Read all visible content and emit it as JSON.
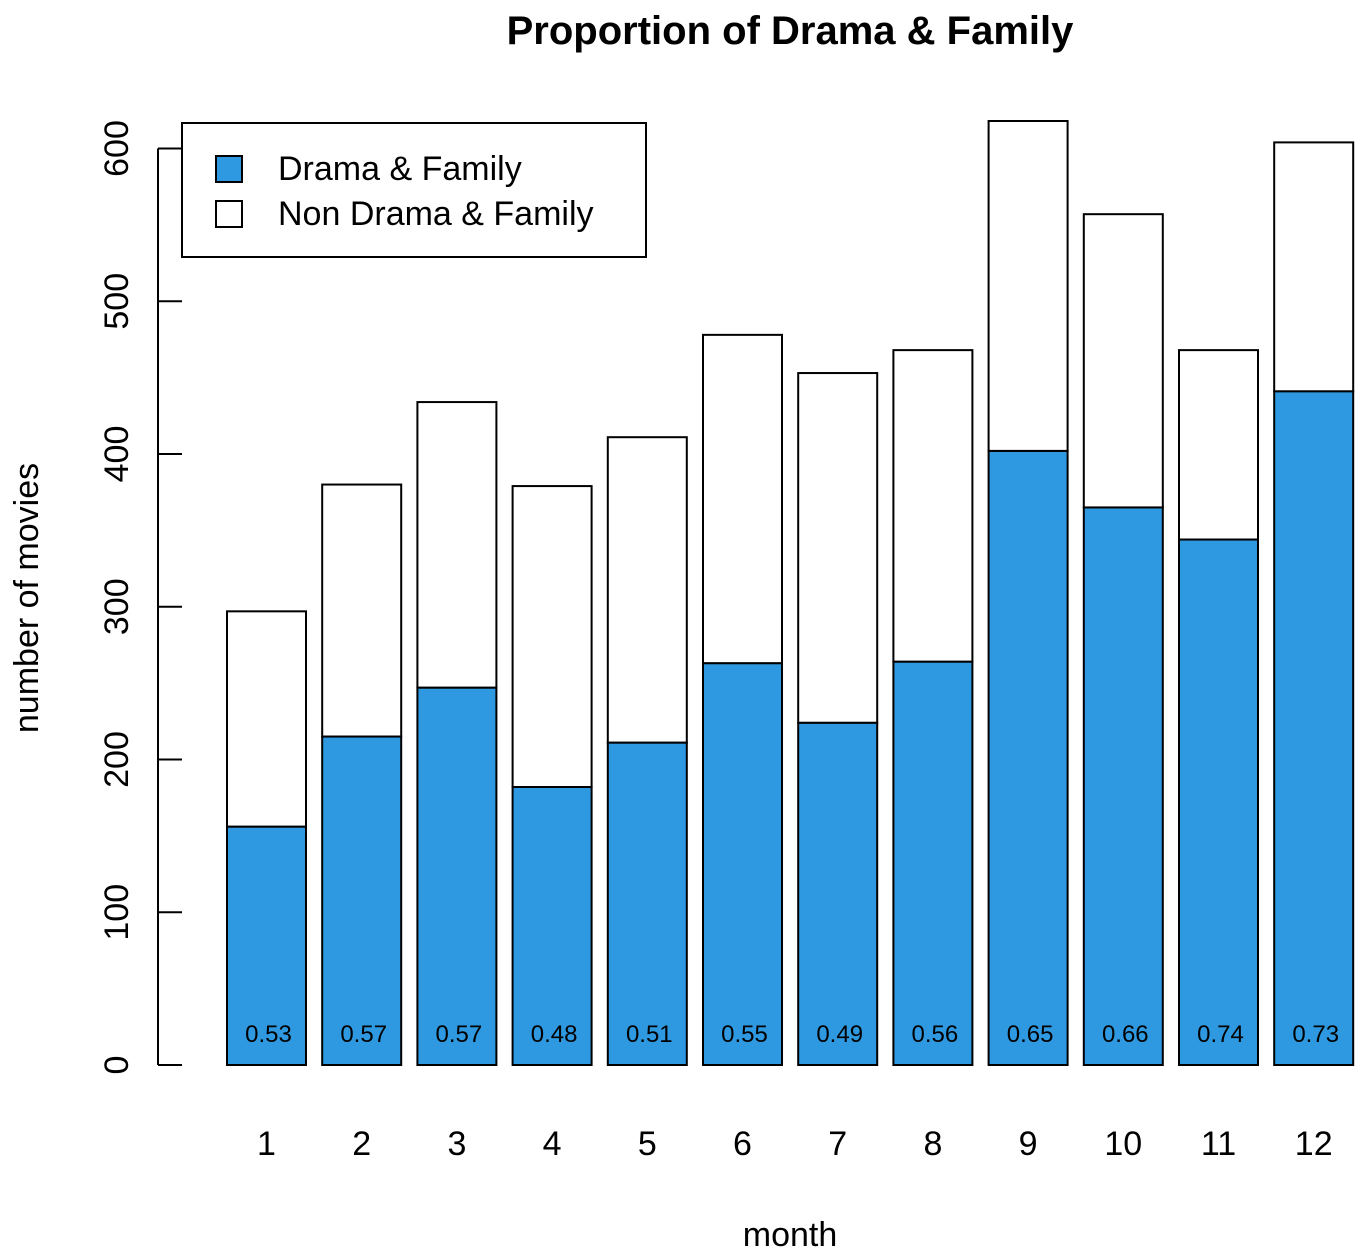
{
  "chart_data": {
    "type": "bar",
    "stacked": true,
    "title": "Proportion of Drama & Family",
    "xlabel": "month",
    "ylabel": "number of movies",
    "ylim": [
      0,
      620
    ],
    "yticks": [
      0,
      100,
      200,
      300,
      400,
      500,
      600
    ],
    "categories": [
      "1",
      "2",
      "3",
      "4",
      "5",
      "6",
      "7",
      "8",
      "9",
      "10",
      "11",
      "12"
    ],
    "series": [
      {
        "name": "Drama & Family",
        "color": "#2E99E0",
        "values": [
          156,
          215,
          247,
          182,
          211,
          263,
          224,
          264,
          402,
          365,
          344,
          441
        ]
      },
      {
        "name": "Non Drama & Family",
        "color": "#FFFFFF",
        "values": [
          141,
          165,
          187,
          197,
          200,
          215,
          229,
          204,
          216,
          192,
          124,
          163
        ]
      }
    ],
    "data_labels": [
      "0.53",
      "0.57",
      "0.57",
      "0.48",
      "0.51",
      "0.55",
      "0.49",
      "0.56",
      "0.65",
      "0.66",
      "0.74",
      "0.73"
    ],
    "legend": {
      "placement": "top-left",
      "entries": [
        "Drama & Family",
        "Non Drama & Family"
      ]
    },
    "grid": false
  }
}
